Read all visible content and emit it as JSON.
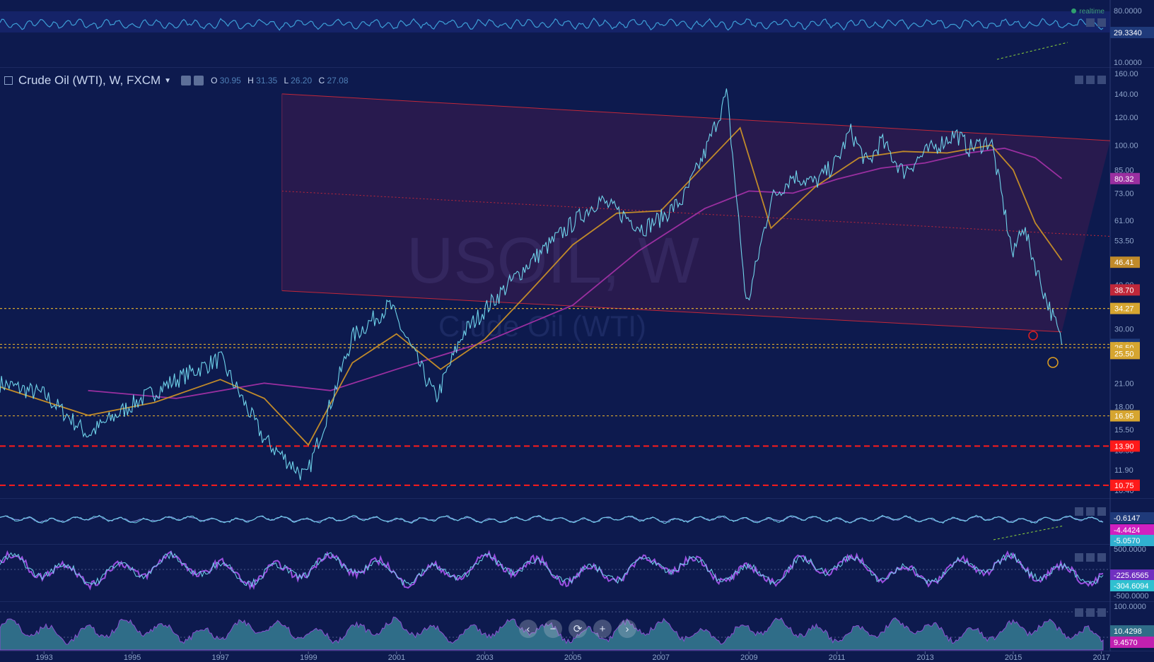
{
  "header": {
    "symbol_label": "Crude Oil (WTI), W, FXCM",
    "o_label": "O",
    "o_value": "30.95",
    "h_label": "H",
    "h_value": "31.35",
    "l_label": "L",
    "l_value": "26.20",
    "c_label": "C",
    "c_value": "27.08",
    "watermark_symbol": "USOIL, W",
    "watermark_name": "Crude Oil (WTI)",
    "realtime_label": "realtime"
  },
  "colors": {
    "background": "#0d1a4e",
    "price_line": "#6fd3ea",
    "fast_ma": "#c08a2a",
    "slow_ma": "#9a2fa0",
    "channel_line": "#c0283a",
    "support_dashed": "#d6a530",
    "resistance_dashed": "#ff1a1a",
    "osc_fill": "#2f6d88"
  },
  "controls": {
    "buttons": [
      "‹",
      "−",
      "⟳",
      "+",
      "›"
    ]
  },
  "chart_data": [
    {
      "type": "line",
      "panel": "top-oscillator",
      "y_axis_labels": [
        "80.0000",
        "29.3340",
        "10.0000"
      ],
      "current_value": "29.3340",
      "annotations": [
        "rising dashed trendline 2015-2016"
      ]
    },
    {
      "type": "line",
      "panel": "main-price",
      "title": "Crude Oil (WTI), W, FXCM",
      "x_tick_labels": [
        "1993",
        "1995",
        "1997",
        "1999",
        "2001",
        "2003",
        "2005",
        "2007",
        "2009",
        "2011",
        "2013",
        "2015",
        "2017"
      ],
      "x_range": [
        1992,
        2017.2
      ],
      "y_scale": "log",
      "y_range": [
        10.4,
        160
      ],
      "y_tick_labels": [
        "160.00",
        "140.00",
        "120.00",
        "100.00",
        "85.00",
        "73.00",
        "61.00",
        "53.50",
        "46.00",
        "40.00",
        "34.00",
        "30.00",
        "25.50",
        "21.00",
        "18.00",
        "15.50",
        "13.50",
        "11.90",
        "10.40"
      ],
      "series": [
        {
          "x": [
            1992.0,
            1993.0,
            1994.0,
            1995.0,
            1996.0,
            1997.0,
            1998.0,
            1998.95,
            2000.0,
            2000.85,
            2001.9,
            2002.5,
            2003.0,
            2004.0,
            2005.0,
            2005.6,
            2006.6,
            2007.0,
            2007.5,
            2008.0,
            2008.5,
            2008.95,
            2009.5,
            2010.0,
            2010.5,
            2011.0,
            2011.3,
            2011.7,
            2012.0,
            2012.5,
            2013.0,
            2013.7,
            2014.0,
            2014.5,
            2015.0,
            2015.2,
            2015.4,
            2015.7,
            2016.0,
            2016.1
          ],
          "values": [
            21.0,
            19.5,
            15.0,
            18.3,
            21.5,
            24.7,
            14.5,
            11.3,
            28.5,
            35.0,
            19.0,
            29.0,
            34.0,
            46.0,
            60.0,
            70.0,
            58.0,
            62.0,
            70.0,
            95.0,
            140.0,
            34.5,
            70.0,
            82.0,
            78.0,
            90.0,
            110.0,
            88.0,
            103.0,
            84.0,
            95.0,
            108.0,
            98.0,
            103.0,
            48.0,
            60.0,
            50.0,
            38.0,
            30.0,
            27.08
          ]
        },
        {
          "x": [
            1992.0,
            1994.0,
            1995.5,
            1997.0,
            1998.0,
            1999.0,
            2000.0,
            2001.0,
            2002.0,
            2003.0,
            2004.0,
            2005.0,
            2006.0,
            2007.0,
            2008.0,
            2008.8,
            2009.5,
            2010.5,
            2011.5,
            2012.5,
            2013.5,
            2014.5,
            2015.0,
            2015.5,
            2016.1
          ],
          "values": [
            20.5,
            17.0,
            18.5,
            21.5,
            19.0,
            14.0,
            24.0,
            29.0,
            23.0,
            28.0,
            38.0,
            52.0,
            64.0,
            65.0,
            88.0,
            112.0,
            58.0,
            76.0,
            92.0,
            96.0,
            95.0,
            100.0,
            85.0,
            60.0,
            47.0
          ]
        },
        {
          "x": [
            1994.0,
            1996.0,
            1998.0,
            1999.5,
            2001.0,
            2003.0,
            2005.0,
            2006.5,
            2008.0,
            2009.0,
            2010.0,
            2011.0,
            2012.0,
            2013.0,
            2014.0,
            2014.8,
            2015.5,
            2016.1
          ],
          "values": [
            20.0,
            19.0,
            21.0,
            20.0,
            23.0,
            27.5,
            35.0,
            50.0,
            66.0,
            74.0,
            73.0,
            80.0,
            86.0,
            89.0,
            95.0,
            98.0,
            92.0,
            80.32
          ]
        }
      ],
      "price_labels": [
        {
          "value": "80.32",
          "color": "#9a2fa0"
        },
        {
          "value": "46.41",
          "color": "#c08a2a"
        },
        {
          "value": "38.70",
          "color": "#c0283a"
        },
        {
          "value": "34.27",
          "color": "#d6a530"
        },
        {
          "value": "27.08",
          "color": "#1f3a7a"
        },
        {
          "value": "26.50",
          "color": "#d6a530"
        },
        {
          "value": "25.50",
          "color": "#d6a530"
        },
        {
          "value": "16.95",
          "color": "#d6a530"
        },
        {
          "value": "13.90",
          "color": "#ff1a1a"
        },
        {
          "value": "10.75",
          "color": "#ff1a1a"
        }
      ],
      "horizontal_levels": [
        34.27,
        27.08,
        26.5,
        16.95,
        13.9,
        10.75
      ],
      "channel": {
        "upper": [
          [
            1998.4,
            140
          ],
          [
            2017.2,
            103
          ]
        ],
        "middle": [
          [
            1998.4,
            74
          ],
          [
            2017.2,
            55
          ]
        ],
        "lower": [
          [
            1998.4,
            38.5
          ],
          [
            2016.1,
            29.4
          ]
        ]
      }
    },
    {
      "type": "line",
      "panel": "macd",
      "y_axis_labels": [
        "-0.6147",
        "-4.4424",
        "-5.0570"
      ]
    },
    {
      "type": "line",
      "panel": "stochastic",
      "y_axis_labels": [
        "500.0000",
        "-225.6565",
        "-304.6094",
        "-500.0000"
      ]
    },
    {
      "type": "area",
      "panel": "lower-oscillator",
      "y_axis_labels": [
        "100.0000",
        "10.4298",
        "9.4570"
      ]
    }
  ]
}
